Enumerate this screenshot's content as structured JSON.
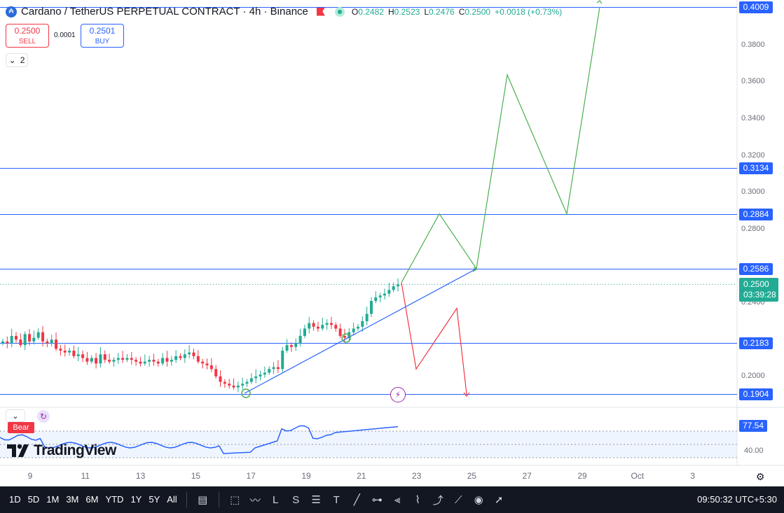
{
  "header": {
    "coin_icon": "cardano-coin-icon",
    "title": "Cardano / TetherUS PERPETUAL CONTRACT · 4h · Binance",
    "ohlc": {
      "o_label": "O",
      "o_value": "0.2482",
      "h_label": "H",
      "h_value": "0.2523",
      "l_label": "L",
      "l_value": "0.2476",
      "c_label": "C",
      "c_value": "0.2500",
      "change": "+0.0018 (+0.73%)"
    }
  },
  "trade": {
    "sell_price": "0.2500",
    "sell_label": "SELL",
    "spread": "0.0001",
    "buy_price": "0.2501",
    "buy_label": "BUY"
  },
  "collapse_count": "2",
  "price_axis": {
    "ticks": [
      "0.3800",
      "0.3600",
      "0.3400",
      "0.3200",
      "0.3000",
      "0.2800",
      "0.2400",
      "0.2000"
    ],
    "levels": [
      "0.4009",
      "0.3134",
      "0.2884",
      "0.2586",
      "0.2183",
      "0.1904"
    ],
    "current_price": "0.2500",
    "countdown": "03:39:28"
  },
  "time_axis": [
    "9",
    "11",
    "13",
    "15",
    "17",
    "19",
    "21",
    "23",
    "25",
    "27",
    "29",
    "Oct",
    "3"
  ],
  "indicator": {
    "tag": "Bear",
    "value": "77.54",
    "tick": "40.00"
  },
  "watermark": "TradingView",
  "toolbar": {
    "timeframes": [
      "1D",
      "5D",
      "1M",
      "3M",
      "6M",
      "YTD",
      "1Y",
      "5Y",
      "All"
    ],
    "clock": "09:50:32 UTC+5:30"
  },
  "colors": {
    "up": "#22ab94",
    "down": "#f23645",
    "level_line": "#2962ff",
    "bull_path": "#4caf50",
    "bear_path": "#f23645"
  },
  "chart_data": {
    "type": "candlestick",
    "symbol": "ADAUSDT.P",
    "timeframe": "4h",
    "ylim": [
      0.1904,
      0.4009
    ],
    "x_ticks": [
      "9",
      "11",
      "13",
      "15",
      "17",
      "19",
      "21",
      "23",
      "25",
      "27",
      "29",
      "Oct",
      "3"
    ],
    "candles_close": [
      0.219,
      0.218,
      0.222,
      0.22,
      0.217,
      0.223,
      0.219,
      0.221,
      0.224,
      0.219,
      0.218,
      0.22,
      0.215,
      0.214,
      0.213,
      0.214,
      0.211,
      0.212,
      0.21,
      0.208,
      0.21,
      0.207,
      0.212,
      0.209,
      0.208,
      0.209,
      0.21,
      0.209,
      0.21,
      0.209,
      0.208,
      0.207,
      0.208,
      0.209,
      0.208,
      0.207,
      0.21,
      0.208,
      0.209,
      0.211,
      0.21,
      0.212,
      0.213,
      0.211,
      0.208,
      0.207,
      0.206,
      0.204,
      0.2,
      0.197,
      0.196,
      0.195,
      0.194,
      0.195,
      0.196,
      0.197,
      0.199,
      0.2,
      0.201,
      0.202,
      0.204,
      0.205,
      0.204,
      0.214,
      0.217,
      0.216,
      0.218,
      0.222,
      0.226,
      0.229,
      0.227,
      0.226,
      0.228,
      0.229,
      0.228,
      0.226,
      0.222,
      0.221,
      0.224,
      0.226,
      0.227,
      0.23,
      0.234,
      0.241,
      0.243,
      0.244,
      0.245,
      0.247,
      0.249,
      0.25
    ],
    "horizontal_levels": [
      0.4009,
      0.3134,
      0.2884,
      0.2586,
      0.2183,
      0.1904
    ],
    "bull_projection": [
      0.251,
      0.2884,
      0.2586,
      0.364,
      0.2884,
      0.4009
    ],
    "bear_projection": [
      0.251,
      0.204,
      0.237,
      0.1904
    ]
  }
}
